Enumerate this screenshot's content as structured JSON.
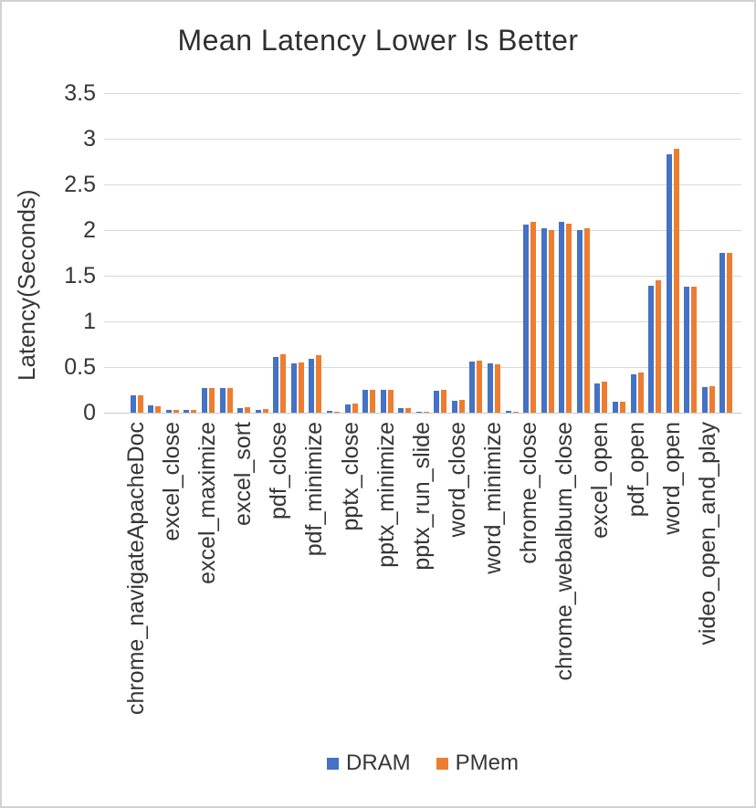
{
  "title": "Mean Latency Lower Is Better",
  "y_axis": {
    "label": "Latency(Seconds)",
    "ticks": [
      "3.5",
      "3",
      "2.5",
      "2",
      "1.5",
      "1",
      "0.5",
      "0"
    ]
  },
  "legend": {
    "items": [
      {
        "label": "DRAM",
        "color": "#4472C4"
      },
      {
        "label": "PMem",
        "color": "#ED7D31"
      }
    ]
  },
  "chart_data": {
    "type": "bar",
    "title": "Mean Latency Lower Is Better",
    "xlabel": "",
    "ylabel": "Latency(Seconds)",
    "ylim": [
      0,
      3.5
    ],
    "ytick_step": 0.5,
    "grid": true,
    "legend_position": "bottom",
    "label_note": "34 category slots; axis labels shown only on every other slot",
    "categories": [
      "chrome_navigateApacheDoc",
      "",
      "excel_close",
      "",
      "excel_maximize",
      "",
      "excel_sort",
      "",
      "pdf_close",
      "",
      "pdf_minimize",
      "",
      "pptx_close",
      "",
      "pptx_minimize",
      "",
      "pptx_run_slide",
      "",
      "word_close",
      "",
      "word_minimize",
      "",
      "chrome_close",
      "",
      "chrome_webalbum_close",
      "",
      "excel_open",
      "",
      "pdf_open",
      "",
      "word_open",
      "",
      "video_open_and_play",
      ""
    ],
    "series": [
      {
        "name": "DRAM",
        "color": "#4472C4",
        "values": [
          0.19,
          0.08,
          0.03,
          0.025,
          0.27,
          0.27,
          0.05,
          0.03,
          0.61,
          0.54,
          0.59,
          0.02,
          0.09,
          0.25,
          0.25,
          0.05,
          0.01,
          0.24,
          0.13,
          0.56,
          0.54,
          0.015,
          2.06,
          2.02,
          2.09,
          2.0,
          0.32,
          0.115,
          0.42,
          1.39,
          2.83,
          1.38,
          0.28,
          1.75
        ]
      },
      {
        "name": "PMem",
        "color": "#ED7D31",
        "values": [
          0.19,
          0.07,
          0.025,
          0.03,
          0.27,
          0.27,
          0.06,
          0.035,
          0.64,
          0.55,
          0.63,
          0.01,
          0.1,
          0.25,
          0.25,
          0.05,
          0.01,
          0.245,
          0.14,
          0.57,
          0.53,
          0.01,
          2.09,
          2.0,
          2.07,
          2.02,
          0.34,
          0.12,
          0.44,
          1.45,
          2.89,
          1.38,
          0.29,
          1.75
        ]
      }
    ]
  }
}
